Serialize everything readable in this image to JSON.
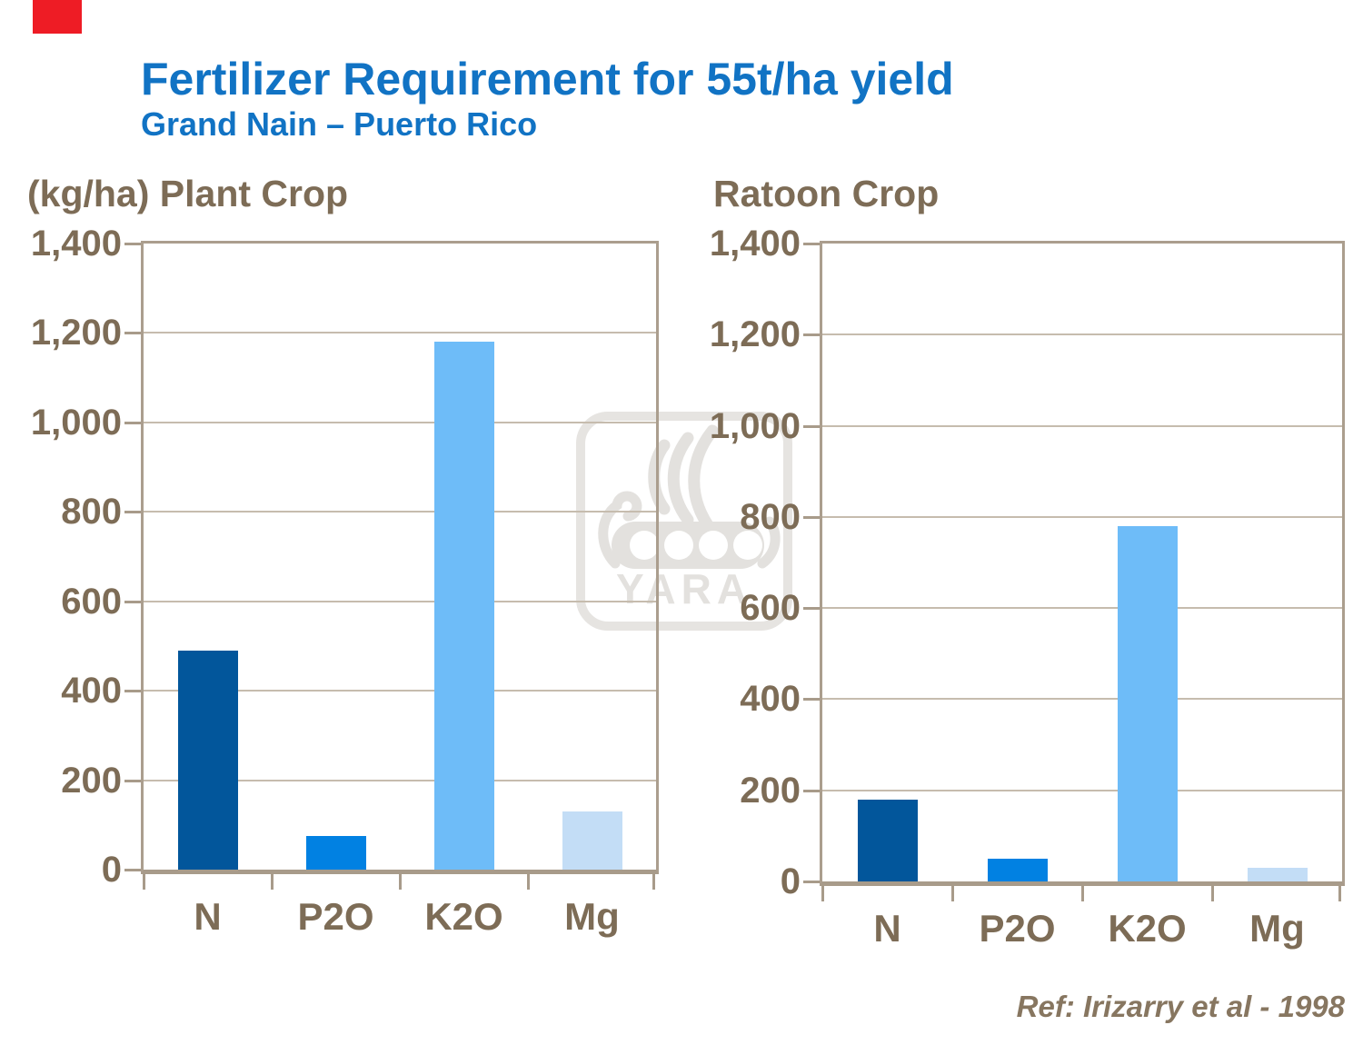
{
  "page": {
    "title": "Fertilizer Requirement for 55t/ha yield",
    "subtitle": "Grand Nain – Puerto Rico",
    "reference": "Ref: Irizarry et al - 1998",
    "watermark_text": "YARA",
    "accent_color": "#ee1c25",
    "title_color": "#1173c4",
    "axis_text_color": "#7d6c56",
    "frame_color": "#ab9e8e"
  },
  "chart_data": [
    {
      "type": "bar",
      "name": "plant-crop",
      "title": "(kg/ha) Plant Crop",
      "categories": [
        "N",
        "P2O",
        "K2O",
        "Mg"
      ],
      "values": [
        490,
        75,
        1180,
        130
      ],
      "bar_colors": [
        "#02569b",
        "#0181e2",
        "#6ebcf8",
        "#c3ddf6"
      ],
      "ylim": [
        0,
        1400
      ],
      "ytick_step": 200,
      "ytick_labels": [
        "0",
        "200",
        "400",
        "600",
        "800",
        "1,000",
        "1,200",
        "1,400"
      ],
      "grid": true,
      "legend": "none"
    },
    {
      "type": "bar",
      "name": "ratoon-crop",
      "title": "Ratoon Crop",
      "categories": [
        "N",
        "P2O",
        "K2O",
        "Mg"
      ],
      "values": [
        180,
        50,
        780,
        30
      ],
      "bar_colors": [
        "#02569b",
        "#0181e2",
        "#6ebcf8",
        "#c3ddf6"
      ],
      "ylim": [
        0,
        1400
      ],
      "ytick_step": 200,
      "ytick_labels": [
        "0",
        "200",
        "400",
        "600",
        "800",
        "1,000",
        "1,200",
        "1,400"
      ],
      "grid": true,
      "legend": "none"
    }
  ]
}
